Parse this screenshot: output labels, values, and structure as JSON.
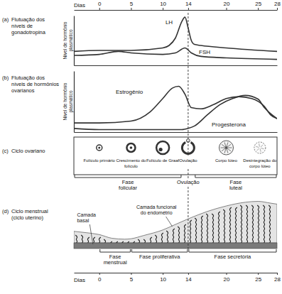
{
  "days_axis": {
    "label": "Dias",
    "xlim": [
      -4,
      28
    ],
    "xticks": [
      0,
      5,
      10,
      14,
      20,
      25,
      28
    ]
  },
  "chart_data": [
    {
      "type": "line",
      "letter": "(a)",
      "title": "Flutuação dos níveis de gonadotropina",
      "y_label": "Nível de hormônio plasmático",
      "xlim": [
        -4,
        28
      ],
      "ylim": [
        0,
        100
      ],
      "tick_labels": false,
      "series": [
        {
          "name": "LH",
          "color": "#333333",
          "x": [
            -4,
            0,
            5,
            10,
            11,
            12,
            13,
            13.5,
            14,
            14.5,
            15,
            16,
            20,
            28
          ],
          "values": [
            28,
            30,
            30,
            35,
            40,
            55,
            88,
            97,
            75,
            50,
            42,
            40,
            35,
            28
          ]
        },
        {
          "name": "FSH",
          "color": "#333333",
          "x": [
            -4,
            0,
            3,
            5,
            10,
            12,
            13.5,
            14.5,
            16,
            20,
            28
          ],
          "values": [
            20,
            22,
            28,
            25,
            22,
            25,
            35,
            25,
            18,
            15,
            12
          ]
        }
      ]
    },
    {
      "type": "line",
      "letter": "(b)",
      "title": "Flutuação dos níveis de hormônios ovarianos",
      "y_label": "Nível de hormônio plasmático",
      "xlim": [
        -4,
        28
      ],
      "ylim": [
        0,
        100
      ],
      "tick_labels": false,
      "series": [
        {
          "name": "Estrogênio",
          "color": "#333333",
          "x": [
            -4,
            0,
            5,
            8,
            10,
            11.5,
            12.5,
            13.5,
            14.5,
            16,
            18,
            20,
            22,
            24,
            26,
            27,
            28
          ],
          "values": [
            15,
            15,
            18,
            33,
            55,
            72,
            75,
            62,
            40,
            38,
            45,
            55,
            58,
            55,
            42,
            28,
            22
          ]
        },
        {
          "name": "Progesterona",
          "color": "#333333",
          "x": [
            -4,
            0,
            13,
            14,
            15,
            17,
            19,
            21,
            23,
            25,
            26,
            27,
            28
          ],
          "values": [
            6,
            4,
            4,
            6,
            10,
            28,
            45,
            55,
            60,
            54,
            40,
            30,
            22
          ]
        }
      ]
    }
  ],
  "ovarian_cycle": {
    "letter": "(c)",
    "title": "Ciclo ovariano",
    "stages": [
      {
        "label": "Folículo primário",
        "day": 0
      },
      {
        "label": "Crescimento do folículo",
        "day": 5
      },
      {
        "label": "Folículo de Graaf",
        "day": 10
      },
      {
        "label": "Ovulação",
        "day": 14
      },
      {
        "label": "Corpo lúteo",
        "day": 20
      },
      {
        "label": "Desintegração do corpo lúteo",
        "day": 25.3
      }
    ],
    "phases": [
      {
        "label": "Fase folicular",
        "start": -4,
        "end": 13
      },
      {
        "label": "Ovulação",
        "start": 14,
        "end": 14
      },
      {
        "label": "Fase luteal",
        "start": 15,
        "end": 28
      }
    ]
  },
  "uterine_cycle": {
    "letter": "(d)",
    "title": "Ciclo menstrual (ciclo uterino)",
    "functional_layer_label": "Camada funcional do endométrio",
    "basal_layer_label": "Camada basal",
    "endometrium": {
      "x": [
        -4,
        -2,
        0,
        2,
        4,
        5,
        7,
        10,
        12,
        14,
        17,
        20,
        23,
        25,
        27,
        28
      ],
      "thickness": [
        25,
        22,
        18,
        10,
        8,
        9,
        16,
        28,
        40,
        52,
        68,
        80,
        88,
        90,
        86,
        84
      ],
      "thickness_lim": [
        0,
        100
      ]
    },
    "phases": [
      {
        "label": "Fase menstrual",
        "start": 0,
        "end": 5
      },
      {
        "label": "Fase proliferativa",
        "start": 5,
        "end": 14
      },
      {
        "label": "Fase secretória",
        "start": 14,
        "end": 28
      }
    ]
  }
}
